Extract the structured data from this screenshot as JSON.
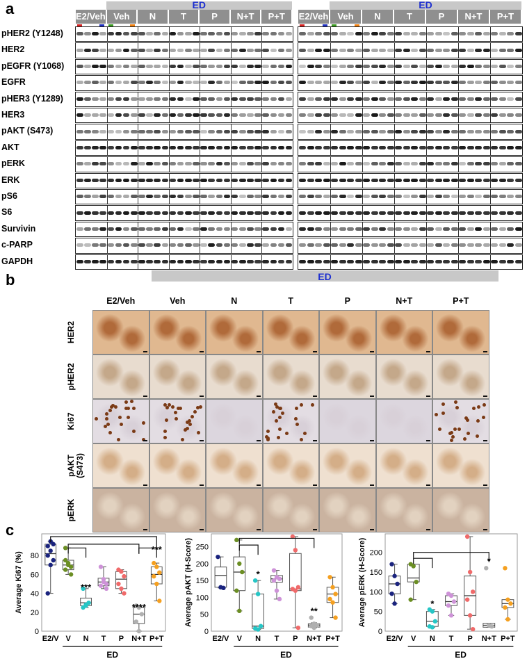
{
  "panel_a": {
    "letter": "a",
    "ed_label": "ED",
    "groups": [
      "E2/Veh",
      "Veh",
      "N",
      "T",
      "P",
      "N+T",
      "P+T"
    ],
    "rows": [
      "pHER2 (Y1248)",
      "HER2",
      "pEGFR (Y1068)",
      "EGFR",
      "pHER3 (Y1289)",
      "HER3",
      "pAKT (S473)",
      "AKT",
      "pERK",
      "ERK",
      "pS6",
      "S6",
      "Survivin",
      "c-PARP",
      "GAPDH"
    ],
    "marker_colors": {
      "red": "#d62020",
      "blue": "#2030c0",
      "green": "#3a9a20",
      "orange": "#f08010"
    }
  },
  "panel_b": {
    "letter": "b",
    "ed_label": "ED",
    "columns": [
      "E2/Veh",
      "Veh",
      "N",
      "T",
      "P",
      "N+T",
      "P+T"
    ],
    "rows": [
      "HER2",
      "pHER2",
      "Ki67",
      "pAKT\n(S473)",
      "pERK"
    ]
  },
  "panel_c": {
    "letter": "c",
    "ed_label": "ED"
  },
  "chart_data": [
    {
      "type": "box",
      "ylabel": "Average Ki67 (%)",
      "ylim": [
        0,
        100
      ],
      "yticks": [
        0,
        20,
        40,
        60,
        80
      ],
      "categories": [
        "E2/V",
        "V",
        "N",
        "T",
        "P",
        "N+T",
        "P+T"
      ],
      "colors": [
        "#1a237e",
        "#6b8e23",
        "#26c6c6",
        "#ce93d8",
        "#f06a6a",
        "#b0b0b0",
        "#f5a020"
      ],
      "boxes": [
        {
          "min": 40,
          "q1": 70,
          "median": 82,
          "q3": 92,
          "max": 95
        },
        {
          "min": 60,
          "q1": 65,
          "median": 70,
          "q3": 75,
          "max": 88
        },
        {
          "min": 25,
          "q1": 27,
          "median": 30,
          "q3": 35,
          "max": 45
        },
        {
          "min": 45,
          "q1": 48,
          "median": 52,
          "q3": 56,
          "max": 68
        },
        {
          "min": 40,
          "q1": 45,
          "median": 55,
          "q3": 63,
          "max": 65
        },
        {
          "min": 0,
          "q1": 8,
          "median": 18,
          "q3": 25,
          "max": 27
        },
        {
          "min": 32,
          "q1": 50,
          "median": 60,
          "q3": 68,
          "max": 72
        }
      ],
      "points": [
        [
          90,
          85,
          92,
          80,
          70,
          75,
          40,
          95
        ],
        [
          88,
          72,
          68,
          65,
          70,
          60,
          75
        ],
        [
          25,
          28,
          30,
          45,
          27
        ],
        [
          68,
          55,
          50,
          48,
          52,
          45
        ],
        [
          65,
          63,
          58,
          50,
          45,
          40
        ],
        [
          27,
          25,
          18,
          10,
          0
        ],
        [
          72,
          68,
          62,
          58,
          50,
          32
        ]
      ],
      "stars": [
        {
          "text": "***",
          "cat": 2,
          "y": 43
        },
        {
          "text": "****",
          "cat": 5,
          "y": 22
        },
        {
          "text": "***",
          "cat": 6,
          "y": 83
        }
      ],
      "brackets": [
        {
          "from": 1,
          "to": 2,
          "y": 88
        },
        {
          "from": 1,
          "to": 5,
          "y": 92
        },
        {
          "from": 0,
          "to": 6,
          "y": 100
        },
        {
          "from": 5,
          "to": 6,
          "y": 88
        }
      ],
      "ed_from": 1,
      "ed_to": 6
    },
    {
      "type": "box",
      "ylabel": "Average pAKT (H-Score)",
      "ylim": [
        0,
        280
      ],
      "yticks": [
        0,
        50,
        100,
        150,
        200,
        250
      ],
      "categories": [
        "E2/V",
        "V",
        "N",
        "T",
        "P",
        "N+T",
        "P+T"
      ],
      "colors": [
        "#1a237e",
        "#6b8e23",
        "#26c6c6",
        "#ce93d8",
        "#f06a6a",
        "#b0b0b0",
        "#f5a020"
      ],
      "boxes": [
        {
          "min": 128,
          "q1": 130,
          "median": 165,
          "q3": 190,
          "max": 220
        },
        {
          "min": 60,
          "q1": 120,
          "median": 175,
          "q3": 220,
          "max": 270
        },
        {
          "min": 5,
          "q1": 8,
          "median": 15,
          "q3": 110,
          "max": 150
        },
        {
          "min": 95,
          "q1": 145,
          "median": 155,
          "q3": 165,
          "max": 180
        },
        {
          "min": 10,
          "q1": 120,
          "median": 125,
          "q3": 230,
          "max": 280
        },
        {
          "min": 10,
          "q1": 12,
          "median": 18,
          "q3": 22,
          "max": 25
        },
        {
          "min": 40,
          "q1": 85,
          "median": 110,
          "q3": 130,
          "max": 160
        }
      ],
      "points": [
        [
          220,
          130,
          128
        ],
        [
          270,
          200,
          175,
          120,
          60
        ],
        [
          150,
          110,
          15,
          8,
          5
        ],
        [
          180,
          160,
          155,
          150,
          120,
          95
        ],
        [
          280,
          240,
          130,
          125,
          120,
          10
        ],
        [
          40,
          22,
          18,
          15,
          10
        ],
        [
          160,
          130,
          110,
          95,
          85,
          40
        ]
      ],
      "stars": [
        {
          "text": "*",
          "cat": 2,
          "y": 160
        },
        {
          "text": "**",
          "cat": 5,
          "y": 50
        }
      ],
      "brackets": [
        {
          "from": 1,
          "to": 2,
          "y": 255
        },
        {
          "from": 1,
          "to": 5,
          "y": 275
        }
      ],
      "ed_from": 1,
      "ed_to": 6
    },
    {
      "type": "box",
      "ylabel": "Average pERK (H-Score)",
      "ylim": [
        0,
        240
      ],
      "yticks": [
        0,
        50,
        100,
        150,
        200
      ],
      "categories": [
        "E2/V",
        "V",
        "N",
        "T",
        "P",
        "N+T",
        "P+T"
      ],
      "colors": [
        "#1a237e",
        "#6b8e23",
        "#26c6c6",
        "#ce93d8",
        "#f06a6a",
        "#b0b0b0",
        "#f5a020"
      ],
      "boxes": [
        {
          "min": 70,
          "q1": 95,
          "median": 120,
          "q3": 140,
          "max": 170
        },
        {
          "min": 80,
          "q1": 125,
          "median": 135,
          "q3": 170,
          "max": 170
        },
        {
          "min": 10,
          "q1": 12,
          "median": 25,
          "q3": 50,
          "max": 55
        },
        {
          "min": 40,
          "q1": 65,
          "median": 75,
          "q3": 90,
          "max": 95
        },
        {
          "min": 5,
          "q1": 40,
          "median": 90,
          "q3": 140,
          "max": 240
        },
        {
          "min": 10,
          "q1": 10,
          "median": 15,
          "q3": 20,
          "max": 20
        },
        {
          "min": 30,
          "q1": 60,
          "median": 70,
          "q3": 80,
          "max": 80
        }
      ],
      "points": [
        [
          170,
          140,
          120,
          95,
          70
        ],
        [
          170,
          165,
          125,
          80
        ],
        [
          55,
          50,
          25,
          12,
          10
        ],
        [
          95,
          90,
          75,
          65,
          40
        ],
        [
          240,
          150,
          100,
          80,
          40,
          5
        ],
        [
          160,
          15,
          12
        ],
        [
          160,
          80,
          70,
          60,
          30
        ]
      ],
      "stars": [
        {
          "text": "*",
          "cat": 2,
          "y": 62
        },
        {
          "text": "*",
          "cat": 5,
          "y": 170
        }
      ],
      "brackets": [
        {
          "from": 1,
          "to": 2,
          "y": 185
        },
        {
          "from": 1,
          "to": 5,
          "y": 200
        }
      ],
      "ed_from": 1,
      "ed_to": 6
    }
  ]
}
